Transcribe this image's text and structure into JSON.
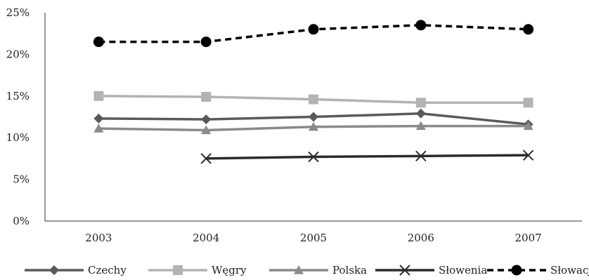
{
  "chart_data": {
    "type": "line",
    "title": "",
    "xlabel": "",
    "ylabel": "",
    "categories": [
      "2003",
      "2004",
      "2005",
      "2006",
      "2007"
    ],
    "ylim": [
      0,
      25
    ],
    "yticks": [
      0,
      5,
      10,
      15,
      20,
      25
    ],
    "ytick_labels": [
      "0%",
      "5%",
      "10%",
      "15%",
      "20%",
      "25%"
    ],
    "grid": false,
    "legend_position": "bottom",
    "series": [
      {
        "name": "Czechy",
        "values": [
          12.3,
          12.2,
          12.5,
          12.9,
          11.6
        ],
        "color": "#5a5a5a",
        "marker": "diamond",
        "dash": "solid"
      },
      {
        "name": "Węgry",
        "values": [
          15.0,
          14.9,
          14.6,
          14.2,
          14.2
        ],
        "color": "#b3b3b3",
        "marker": "square",
        "dash": "solid"
      },
      {
        "name": "Polska",
        "values": [
          11.1,
          10.9,
          11.3,
          11.4,
          11.4
        ],
        "color": "#8a8a8a",
        "marker": "triangle",
        "dash": "solid"
      },
      {
        "name": "Słowenia",
        "values": [
          null,
          7.5,
          7.7,
          7.8,
          7.9
        ],
        "color": "#2b2b2b",
        "marker": "x",
        "dash": "solid"
      },
      {
        "name": "Słowacja",
        "values": [
          21.5,
          21.5,
          23.0,
          23.5,
          23.0
        ],
        "color": "#000000",
        "marker": "circle",
        "dash": "dashed"
      }
    ]
  }
}
